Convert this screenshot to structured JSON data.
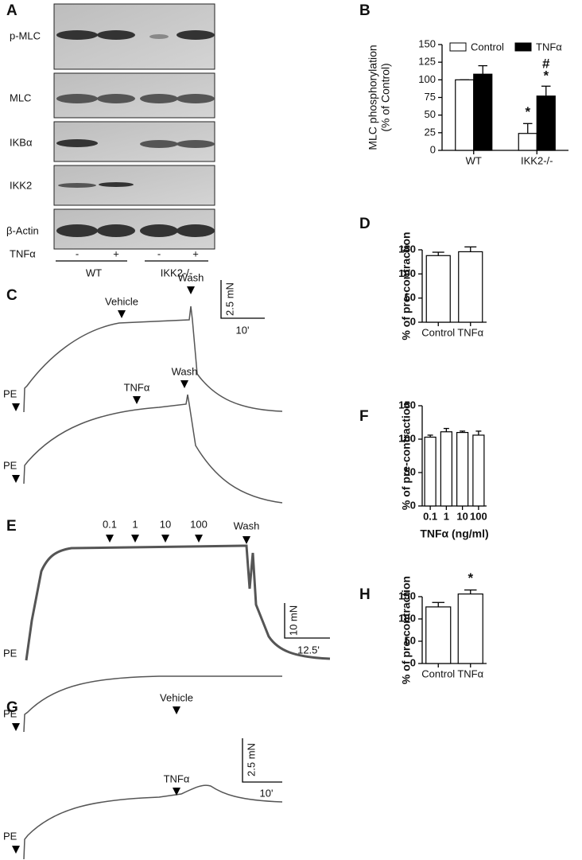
{
  "panel_labels": [
    "A",
    "B",
    "C",
    "D",
    "E",
    "F",
    "G",
    "H"
  ],
  "blot": {
    "rows": [
      "p-MLC",
      "MLC",
      "IKBα",
      "IKK2",
      "β-Actin"
    ],
    "treatment": "TNFα",
    "signs": [
      "-",
      "+",
      "-",
      "+"
    ],
    "groups": [
      "WT",
      "IKK2-/-"
    ]
  },
  "trace_C": {
    "top": [
      "Vehicle",
      "Wash",
      "PE"
    ],
    "bottom": [
      "TNFα",
      "Wash",
      "PE"
    ],
    "scale_y": "2.5 mN",
    "scale_x": "10'"
  },
  "trace_E": {
    "doses": [
      "0.1",
      "1",
      "10",
      "100"
    ],
    "wash": "Wash",
    "pe": "PE",
    "scale_y": "10 mN",
    "scale_x": "12.5'"
  },
  "trace_G": {
    "top": [
      "Vehicle",
      "PE"
    ],
    "bottom": [
      "TNFα",
      "PE"
    ],
    "scale_y": "2.5 mN",
    "scale_x": "10'"
  },
  "chart_data": [
    {
      "type": "bar",
      "y_label": [
        "MLC phosphorylation",
        "(% of Control)"
      ],
      "categories": [
        "WT",
        "IKK2-/-"
      ],
      "series": [
        {
          "name": "Control",
          "color": "#ffffff",
          "values": [
            100,
            24
          ],
          "errors": [
            0,
            14
          ],
          "annotations": [
            null,
            "*"
          ]
        },
        {
          "name": "TNFα",
          "color": "#000000",
          "values": [
            108,
            77
          ],
          "errors": [
            12,
            14
          ],
          "annotations": [
            null,
            "#\n*"
          ]
        }
      ],
      "ylim": [
        0,
        150
      ],
      "yticks": [
        0,
        25,
        50,
        75,
        100,
        125,
        150
      ],
      "legend": "top"
    },
    {
      "type": "bar",
      "y_label": [
        "% of pre-contraction"
      ],
      "categories": [
        "Control",
        "TNFα"
      ],
      "series": [
        {
          "color": "#ffffff",
          "values": [
            138,
            146
          ],
          "errors": [
            7,
            10
          ],
          "annotations": [
            null,
            null
          ]
        }
      ],
      "ylim": [
        0,
        150
      ],
      "yticks": [
        0,
        50,
        100,
        150
      ]
    },
    {
      "type": "bar",
      "y_label": [
        "% of pre-contraction"
      ],
      "x_label": "TNFα (ng/ml)",
      "categories": [
        "0.1",
        "1",
        "10",
        "100"
      ],
      "series": [
        {
          "color": "#ffffff",
          "values": [
            103,
            111,
            110,
            106
          ],
          "errors": [
            3,
            5,
            2,
            6
          ],
          "annotations": [
            null,
            null,
            null,
            null
          ]
        }
      ],
      "ylim": [
        0,
        150
      ],
      "yticks": [
        0,
        50,
        100,
        150
      ]
    },
    {
      "type": "bar",
      "y_label": [
        "% of pre-contraction"
      ],
      "categories": [
        "Control",
        "TNFα"
      ],
      "series": [
        {
          "color": "#ffffff",
          "values": [
            127,
            156
          ],
          "errors": [
            10,
            9
          ],
          "annotations": [
            null,
            "*"
          ]
        }
      ],
      "ylim": [
        0,
        150
      ],
      "yticks": [
        0,
        50,
        100,
        150
      ]
    }
  ]
}
